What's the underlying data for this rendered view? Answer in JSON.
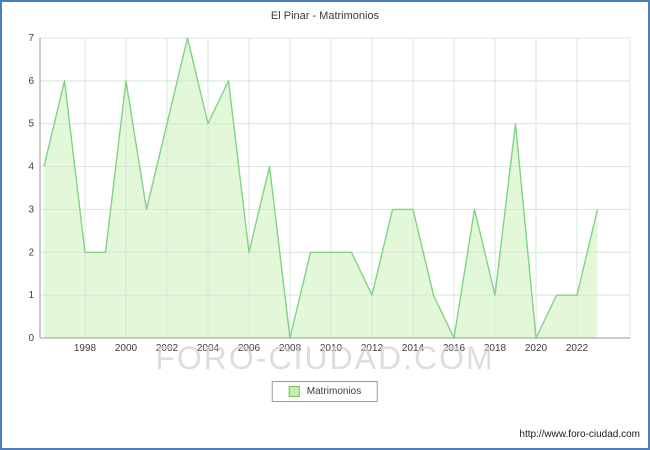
{
  "title": "El Pinar - Matrimonios",
  "watermark": "FORO-CIUDAD.COM",
  "footer_url": "http://www.foro-ciudad.com",
  "legend": {
    "label": "Matrimonios"
  },
  "colors": {
    "frame_border": "#4d7ebf",
    "line": "#82d382",
    "area_fill": "#e3f8d9",
    "grid": "#d9e4d9",
    "axis": "#9a9a9a",
    "tick_text": "#3c3c3c",
    "title_text": "#3c3c3c",
    "watermark_text": "#d2d2d2",
    "legend_swatch_fill": "#c9ecb6",
    "legend_swatch_border": "#76c258",
    "footer_text": "#1c1c1c"
  },
  "chart_data": {
    "type": "area",
    "title": "El Pinar - Matrimonios",
    "series_name": "Matrimonios",
    "years": [
      1996,
      1997,
      1998,
      1999,
      2000,
      2001,
      2002,
      2003,
      2004,
      2005,
      2006,
      2007,
      2008,
      2009,
      2010,
      2011,
      2012,
      2013,
      2014,
      2015,
      2016,
      2017,
      2018,
      2019,
      2020,
      2021,
      2022,
      2023
    ],
    "values": [
      4,
      6,
      2,
      2,
      6,
      3,
      5,
      7,
      5,
      6,
      2,
      4,
      0,
      2,
      2,
      2,
      1,
      3,
      3,
      1,
      0,
      3,
      1,
      5,
      0,
      1,
      1,
      3
    ],
    "x_tick_years": [
      1998,
      2000,
      2002,
      2004,
      2006,
      2008,
      2010,
      2012,
      2014,
      2016,
      2018,
      2020,
      2022
    ],
    "y_ticks": [
      0,
      1,
      2,
      3,
      4,
      5,
      6,
      7
    ],
    "ylim": [
      0,
      7
    ],
    "grid": true,
    "legend_position": "bottom"
  }
}
